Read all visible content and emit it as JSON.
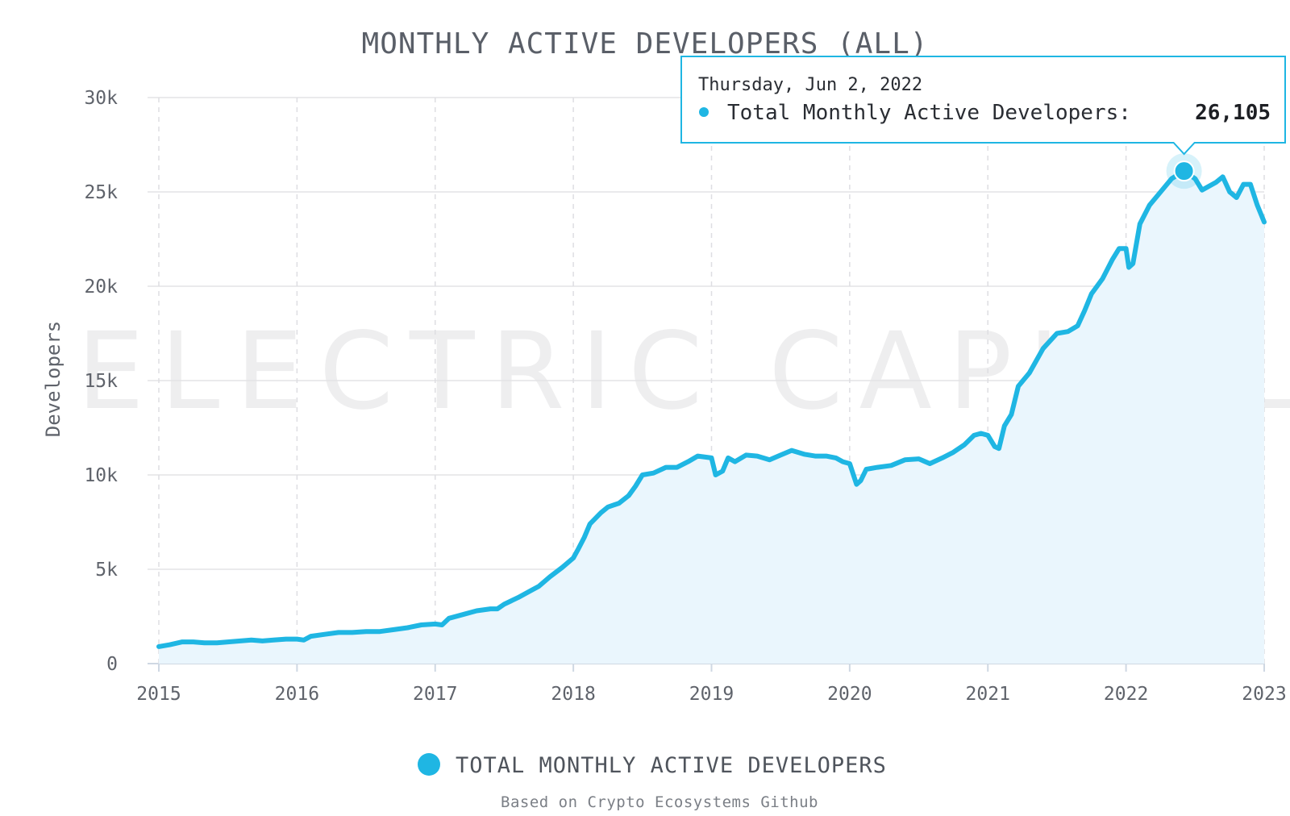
{
  "chart_data": {
    "type": "area",
    "title": "MONTHLY ACTIVE DEVELOPERS (ALL)",
    "ylabel": "Developers",
    "xlabel": "",
    "xlim": [
      2015.0,
      2023.0
    ],
    "ylim": [
      0,
      30000
    ],
    "y_ticks": [
      0,
      5000,
      10000,
      15000,
      20000,
      25000,
      30000
    ],
    "y_tick_labels": [
      "0",
      "5k",
      "10k",
      "15k",
      "20k",
      "25k",
      "30k"
    ],
    "x_ticks": [
      2015,
      2016,
      2017,
      2018,
      2019,
      2020,
      2021,
      2022,
      2023
    ],
    "x_tick_labels": [
      "2015",
      "2016",
      "2017",
      "2018",
      "2019",
      "2020",
      "2021",
      "2022",
      "2023"
    ],
    "grid": true,
    "legend_position": "bottom-center",
    "watermark": "ELECTRIC CAPITAL",
    "source": "Based on Crypto Ecosystems Github",
    "series": [
      {
        "name": "TOTAL MONTHLY ACTIVE DEVELOPERS",
        "color": "#1fb6e3",
        "fill": "#eaf6fd",
        "points": [
          [
            2015.0,
            900
          ],
          [
            2015.08,
            1000
          ],
          [
            2015.17,
            1150
          ],
          [
            2015.25,
            1150
          ],
          [
            2015.33,
            1100
          ],
          [
            2015.42,
            1100
          ],
          [
            2015.5,
            1150
          ],
          [
            2015.67,
            1250
          ],
          [
            2015.75,
            1200
          ],
          [
            2015.83,
            1250
          ],
          [
            2015.92,
            1300
          ],
          [
            2016.0,
            1300
          ],
          [
            2016.05,
            1250
          ],
          [
            2016.1,
            1450
          ],
          [
            2016.2,
            1550
          ],
          [
            2016.3,
            1650
          ],
          [
            2016.4,
            1650
          ],
          [
            2016.5,
            1700
          ],
          [
            2016.6,
            1700
          ],
          [
            2016.7,
            1800
          ],
          [
            2016.8,
            1900
          ],
          [
            2016.9,
            2050
          ],
          [
            2017.0,
            2100
          ],
          [
            2017.05,
            2050
          ],
          [
            2017.1,
            2400
          ],
          [
            2017.2,
            2600
          ],
          [
            2017.3,
            2800
          ],
          [
            2017.4,
            2900
          ],
          [
            2017.45,
            2900
          ],
          [
            2017.5,
            3150
          ],
          [
            2017.6,
            3500
          ],
          [
            2017.7,
            3900
          ],
          [
            2017.75,
            4100
          ],
          [
            2017.83,
            4600
          ],
          [
            2017.92,
            5100
          ],
          [
            2018.0,
            5600
          ],
          [
            2018.03,
            6000
          ],
          [
            2018.08,
            6700
          ],
          [
            2018.12,
            7400
          ],
          [
            2018.2,
            8000
          ],
          [
            2018.25,
            8300
          ],
          [
            2018.33,
            8500
          ],
          [
            2018.4,
            8900
          ],
          [
            2018.45,
            9400
          ],
          [
            2018.5,
            10000
          ],
          [
            2018.58,
            10100
          ],
          [
            2018.67,
            10400
          ],
          [
            2018.75,
            10400
          ],
          [
            2018.83,
            10700
          ],
          [
            2018.9,
            11000
          ],
          [
            2019.0,
            10900
          ],
          [
            2019.03,
            10000
          ],
          [
            2019.08,
            10200
          ],
          [
            2019.12,
            10900
          ],
          [
            2019.17,
            10700
          ],
          [
            2019.25,
            11050
          ],
          [
            2019.33,
            11000
          ],
          [
            2019.42,
            10800
          ],
          [
            2019.5,
            11050
          ],
          [
            2019.58,
            11300
          ],
          [
            2019.67,
            11100
          ],
          [
            2019.75,
            11000
          ],
          [
            2019.83,
            11000
          ],
          [
            2019.9,
            10900
          ],
          [
            2019.95,
            10700
          ],
          [
            2020.0,
            10600
          ],
          [
            2020.05,
            9500
          ],
          [
            2020.08,
            9700
          ],
          [
            2020.12,
            10300
          ],
          [
            2020.2,
            10400
          ],
          [
            2020.3,
            10500
          ],
          [
            2020.4,
            10800
          ],
          [
            2020.5,
            10850
          ],
          [
            2020.58,
            10600
          ],
          [
            2020.67,
            10900
          ],
          [
            2020.75,
            11200
          ],
          [
            2020.83,
            11600
          ],
          [
            2020.9,
            12100
          ],
          [
            2020.95,
            12200
          ],
          [
            2021.0,
            12100
          ],
          [
            2021.05,
            11500
          ],
          [
            2021.08,
            11400
          ],
          [
            2021.12,
            12600
          ],
          [
            2021.17,
            13200
          ],
          [
            2021.22,
            14700
          ],
          [
            2021.3,
            15400
          ],
          [
            2021.4,
            16700
          ],
          [
            2021.5,
            17500
          ],
          [
            2021.58,
            17600
          ],
          [
            2021.65,
            17900
          ],
          [
            2021.7,
            18700
          ],
          [
            2021.75,
            19600
          ],
          [
            2021.83,
            20400
          ],
          [
            2021.9,
            21400
          ],
          [
            2021.95,
            22000
          ],
          [
            2022.0,
            22000
          ],
          [
            2022.02,
            21000
          ],
          [
            2022.05,
            21200
          ],
          [
            2022.1,
            23300
          ],
          [
            2022.17,
            24300
          ],
          [
            2022.25,
            25000
          ],
          [
            2022.33,
            25700
          ],
          [
            2022.42,
            26105
          ],
          [
            2022.5,
            25700
          ],
          [
            2022.55,
            25100
          ],
          [
            2022.6,
            25300
          ],
          [
            2022.65,
            25500
          ],
          [
            2022.7,
            25800
          ],
          [
            2022.75,
            25000
          ],
          [
            2022.8,
            24700
          ],
          [
            2022.85,
            25400
          ],
          [
            2022.9,
            25400
          ],
          [
            2022.95,
            24300
          ],
          [
            2023.0,
            23400
          ]
        ]
      }
    ],
    "tooltip": {
      "date": "Thursday, Jun 2, 2022",
      "label": "Total Monthly Active Developers:",
      "value": "26,105",
      "x": 2022.42,
      "y": 26105
    }
  }
}
